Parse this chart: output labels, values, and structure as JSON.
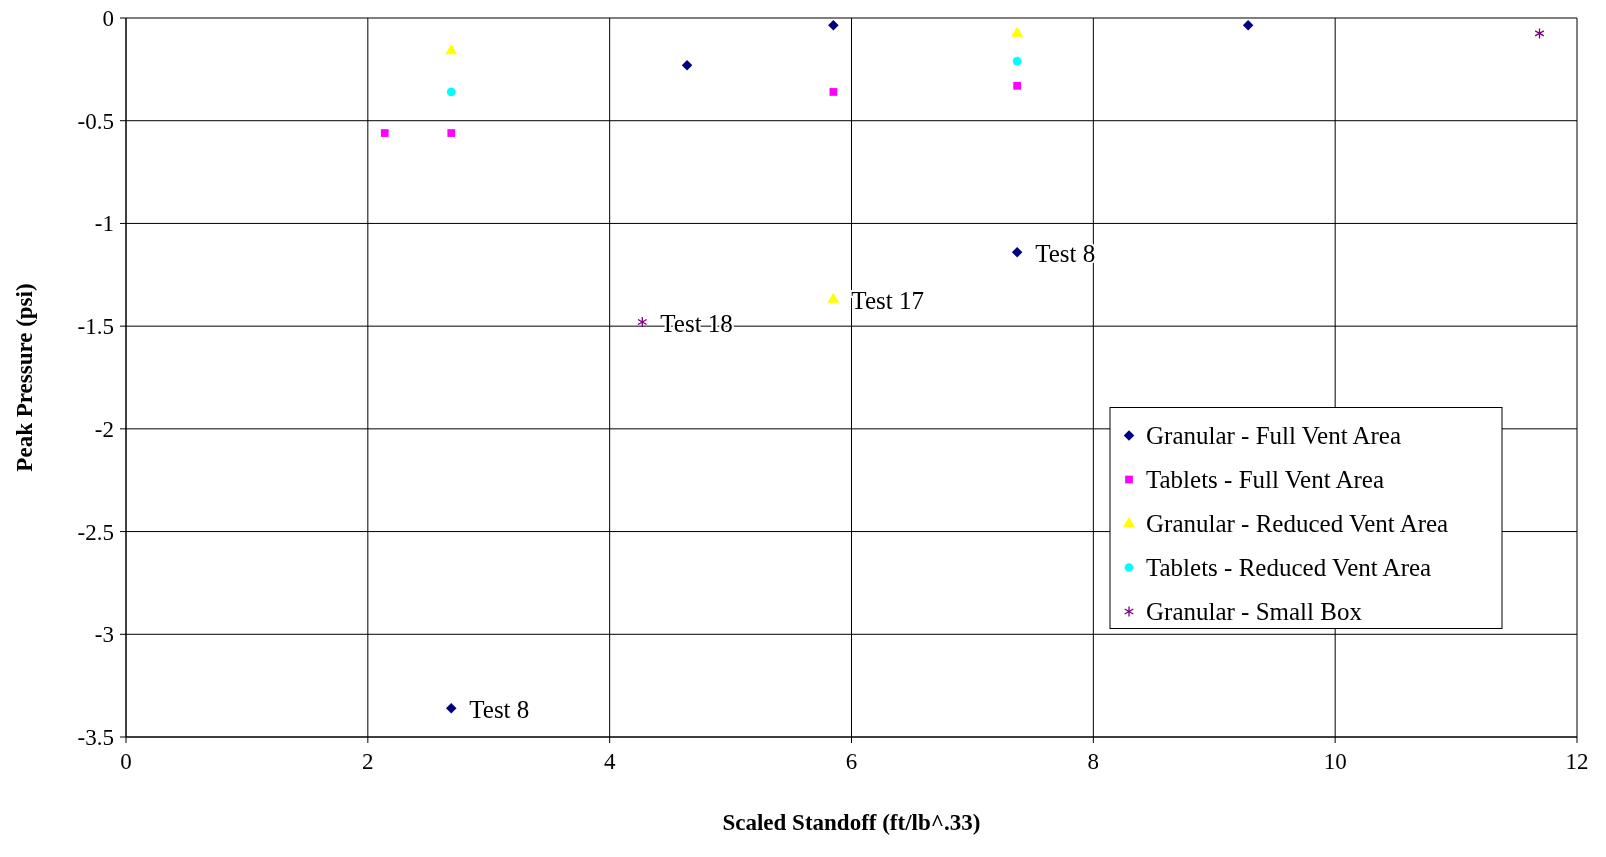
{
  "chart_data": {
    "type": "scatter",
    "xlabel": "Scaled Standoff (ft/lb^.33)",
    "ylabel": "Peak Pressure (psi)",
    "xlim": [
      0,
      12
    ],
    "xticks": [
      0,
      2,
      4,
      6,
      8,
      10,
      12
    ],
    "ylim": [
      -3.5,
      0
    ],
    "yticks": [
      -3.5,
      -3,
      -2.5,
      -2,
      -1.5,
      -1,
      -0.5,
      0
    ],
    "grid": true,
    "legend": "right",
    "series": [
      {
        "name": "Granular - Full Vent Area",
        "color": "#000080",
        "marker": "diamond",
        "x": [
          5.85,
          4.64,
          9.28,
          7.37,
          2.69
        ],
        "values": [
          -0.035,
          -0.23,
          -0.035,
          -1.14,
          -3.36
        ]
      },
      {
        "name": "Tablets - Full Vent Area",
        "color": "#ff00ff",
        "marker": "square",
        "x": [
          2.14,
          2.69,
          5.85,
          7.37
        ],
        "values": [
          -0.56,
          -0.56,
          -0.36,
          -0.33
        ]
      },
      {
        "name": "Granular - Reduced Vent Area",
        "color": "#ffff00",
        "marker": "triangle",
        "x": [
          2.69,
          7.37,
          5.85
        ],
        "values": [
          -0.16,
          -0.075,
          -1.37
        ]
      },
      {
        "name": "Tablets - Reduced Vent Area",
        "color": "#00ffff",
        "marker": "circle",
        "x": [
          2.69,
          7.37
        ],
        "values": [
          -0.36,
          -0.21
        ]
      },
      {
        "name": "Granular - Small Box",
        "color": "#800080",
        "marker": "cross",
        "x": [
          4.27,
          11.69
        ],
        "values": [
          -1.48,
          -0.075
        ]
      }
    ],
    "annotations": [
      {
        "text": "Test 8",
        "x": 2.69,
        "y": -3.36
      },
      {
        "text": "Test 8",
        "x": 7.37,
        "y": -1.14
      },
      {
        "text": "Test 17",
        "x": 5.85,
        "y": -1.37
      },
      {
        "text": "Test 18",
        "x": 4.27,
        "y": -1.48
      }
    ]
  }
}
